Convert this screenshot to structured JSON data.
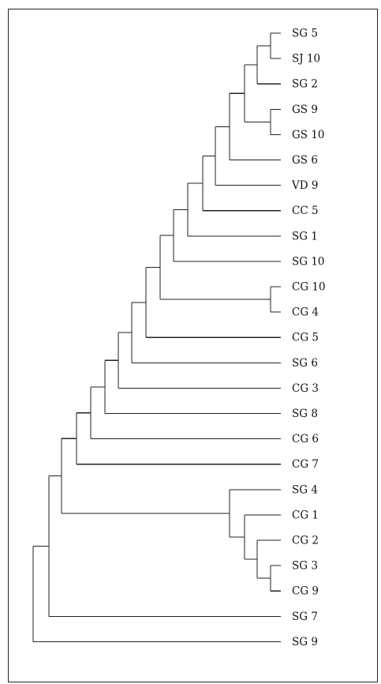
{
  "dendrogram": {
    "leaves": [
      "SG 5",
      "SJ 10",
      "SG 2",
      "GS 9",
      "GS 10",
      "GS 6",
      "VD 9",
      "CC 5",
      "SG 1",
      "SG 10",
      "CG 10",
      "CG 4",
      "CG 5",
      "SG 6",
      "CG 3",
      "SG 8",
      "CG 6",
      "CG 7",
      "SG 4",
      "CG 1",
      "CG 2",
      "SG 3",
      "CG 9",
      "SG 7",
      "SG 9"
    ]
  }
}
